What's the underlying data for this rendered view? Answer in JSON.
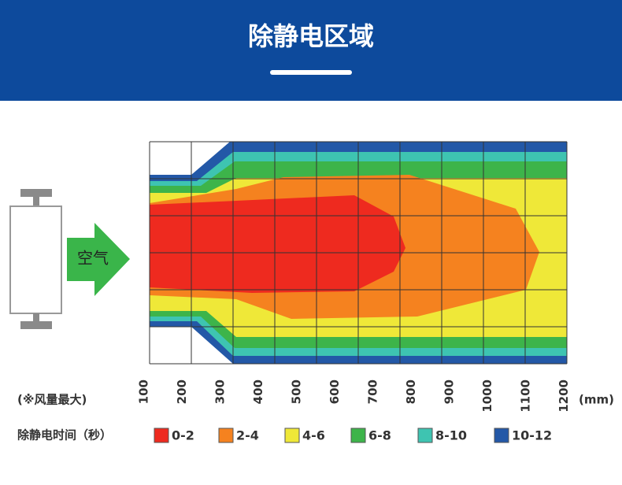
{
  "header": {
    "title": "除静电区域"
  },
  "air_label": "空气",
  "axis": {
    "ticks": [
      100,
      200,
      300,
      400,
      500,
      600,
      700,
      800,
      900,
      1000,
      1100,
      1200
    ],
    "unit": "(mm)"
  },
  "note": "(※风量最大)",
  "legend": {
    "title": "除静电时间（秒）",
    "items": [
      {
        "label": "0-2",
        "color": "#ee2a1f"
      },
      {
        "label": "2-4",
        "color": "#f5821f"
      },
      {
        "label": "4-6",
        "color": "#efe838"
      },
      {
        "label": "6-8",
        "color": "#3db44a"
      },
      {
        "label": "8-10",
        "color": "#3ec4b1"
      },
      {
        "label": "10-12",
        "color": "#2358a7"
      }
    ]
  }
}
